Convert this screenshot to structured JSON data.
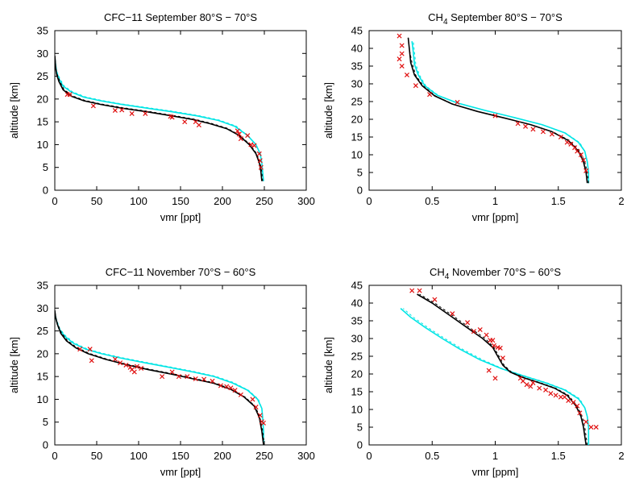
{
  "colors": {
    "model_black": "#000000",
    "model_cyan": "#00e5e5",
    "obs_red": "#e01010",
    "frame": "#000000"
  },
  "chart_data": [
    {
      "type": "line",
      "title": "CFC−11 September 80°S − 70°S",
      "xlabel": "vmr [ppt]",
      "ylabel": "altitude [km]",
      "xlim": [
        0,
        300
      ],
      "ylim": [
        0,
        35
      ],
      "xticks": [
        0,
        50,
        100,
        150,
        200,
        250,
        300
      ],
      "yticks": [
        0,
        5,
        10,
        15,
        20,
        25,
        30,
        35
      ],
      "series": [
        {
          "style": "solid-black",
          "x": [
            247,
            246,
            244,
            240,
            232,
            220,
            205,
            185,
            165,
            140,
            110,
            80,
            55,
            35,
            20,
            10,
            5,
            2,
            1,
            0.5,
            0
          ],
          "y": [
            2,
            4,
            6,
            8,
            10,
            12,
            13.5,
            14.6,
            15.5,
            16.3,
            17.2,
            18,
            18.8,
            19.6,
            20.6,
            22,
            23.8,
            25.5,
            27,
            28.5,
            29.5
          ]
        },
        {
          "style": "dashed-black",
          "x": [
            248,
            247,
            245,
            241,
            233,
            221,
            206,
            186,
            166,
            141,
            111,
            81,
            56,
            36,
            21,
            11,
            6,
            2.5,
            1.2,
            0.5,
            0
          ],
          "y": [
            2,
            4,
            6,
            8,
            10,
            12,
            13.6,
            14.7,
            15.6,
            16.4,
            17.3,
            18.1,
            18.9,
            19.7,
            20.7,
            22.1,
            23.9,
            25.6,
            27,
            28.5,
            29.5
          ]
        },
        {
          "style": "solid-cyan",
          "x": [
            249,
            248,
            247,
            245,
            240,
            230,
            215,
            195,
            170,
            140,
            110,
            80,
            55,
            35,
            20,
            10,
            5,
            2,
            1,
            0
          ],
          "y": [
            2,
            4,
            6,
            8,
            10,
            12,
            14,
            15.3,
            16.3,
            17.2,
            18,
            18.8,
            19.6,
            20.4,
            21.5,
            22.8,
            24.4,
            26,
            27.5,
            29
          ]
        },
        {
          "style": "dashed-cyan",
          "x": [
            249,
            248,
            247,
            245,
            240,
            230,
            216,
            196,
            171,
            141,
            111,
            81,
            56,
            36,
            21,
            11,
            6,
            2.5,
            1,
            0
          ],
          "y": [
            2,
            4,
            6,
            8,
            10,
            12,
            14.1,
            15.4,
            16.4,
            17.3,
            18.1,
            18.9,
            19.7,
            20.5,
            21.6,
            22.9,
            24.5,
            26,
            27.5,
            29
          ]
        },
        {
          "style": "cross-red",
          "x": [
            15,
            18,
            46,
            72,
            80,
            92,
            108,
            138,
            140,
            155,
            168,
            172,
            218,
            220,
            222,
            230,
            234,
            238,
            244,
            245,
            246
          ],
          "y": [
            21,
            21,
            18.5,
            17.5,
            17.6,
            16.8,
            16.8,
            16.2,
            16,
            15,
            15,
            14.3,
            13,
            12.3,
            11.3,
            12,
            10,
            9.8,
            8,
            6.5,
            5
          ]
        }
      ]
    },
    {
      "type": "line",
      "title": "CH",
      "title_sub": "4",
      "title_rest": " September 80°S − 70°S",
      "xlabel": "vmr [ppm]",
      "ylabel": "altitude [km]",
      "xlim": [
        0,
        2
      ],
      "ylim": [
        0,
        45
      ],
      "xticks": [
        0,
        0.5,
        1,
        1.5,
        2
      ],
      "yticks": [
        0,
        5,
        10,
        15,
        20,
        25,
        30,
        35,
        40,
        45
      ],
      "series": [
        {
          "style": "solid-black",
          "x": [
            1.73,
            1.72,
            1.7,
            1.66,
            1.58,
            1.45,
            1.28,
            1.08,
            0.86,
            0.66,
            0.52,
            0.42,
            0.36,
            0.33,
            0.32,
            0.31
          ],
          "y": [
            2,
            5,
            8,
            11,
            14,
            16.5,
            18.5,
            20.3,
            22.2,
            24.3,
            26.6,
            29.5,
            32.5,
            36,
            39.5,
            43
          ]
        },
        {
          "style": "dashed-black",
          "x": [
            1.74,
            1.73,
            1.71,
            1.67,
            1.59,
            1.46,
            1.29,
            1.09,
            0.87,
            0.67,
            0.53,
            0.43,
            0.37,
            0.34,
            0.32,
            0.31
          ],
          "y": [
            2,
            5,
            8,
            11,
            14,
            16.4,
            18.4,
            20.2,
            22.1,
            24.2,
            26.5,
            29.4,
            32.4,
            36,
            39.5,
            43
          ]
        },
        {
          "style": "solid-cyan",
          "x": [
            1.74,
            1.74,
            1.73,
            1.71,
            1.66,
            1.55,
            1.37,
            1.15,
            0.92,
            0.7,
            0.54,
            0.44,
            0.39,
            0.36,
            0.35,
            0.34
          ],
          "y": [
            2,
            5,
            8,
            11,
            13.5,
            16.2,
            18.5,
            20.5,
            22.5,
            24.6,
            26.8,
            29.5,
            32.5,
            35.5,
            39,
            42
          ]
        },
        {
          "style": "dashed-cyan",
          "x": [
            1.74,
            1.74,
            1.73,
            1.71,
            1.67,
            1.56,
            1.38,
            1.16,
            0.93,
            0.71,
            0.55,
            0.45,
            0.4,
            0.37,
            0.36,
            0.35
          ],
          "y": [
            2,
            5,
            8,
            11,
            13.4,
            16.1,
            18.4,
            20.4,
            22.4,
            24.5,
            26.7,
            29.4,
            32.4,
            35.5,
            39,
            42
          ]
        },
        {
          "style": "cross-red",
          "x": [
            0.24,
            0.26,
            0.26,
            0.24,
            0.26,
            0.3,
            0.37,
            0.48,
            0.7,
            1.0,
            1.18,
            1.24,
            1.3,
            1.38,
            1.45,
            1.52,
            1.57,
            1.6,
            1.63,
            1.65,
            1.68,
            1.7,
            1.72
          ],
          "y": [
            43.5,
            40.8,
            38.5,
            37,
            35,
            32.5,
            29.5,
            27,
            24.8,
            21,
            18.8,
            18,
            17.2,
            16.5,
            15.8,
            15,
            13.5,
            13,
            12,
            11,
            10,
            8.5,
            5.5
          ]
        }
      ]
    },
    {
      "type": "line",
      "title": "CFC−11 November 70°S − 60°S",
      "xlabel": "vmr [ppt]",
      "ylabel": "altitude [km]",
      "xlim": [
        0,
        300
      ],
      "ylim": [
        0,
        35
      ],
      "xticks": [
        0,
        50,
        100,
        150,
        200,
        250,
        300
      ],
      "yticks": [
        0,
        5,
        10,
        15,
        20,
        25,
        30,
        35
      ],
      "series": [
        {
          "style": "solid-black",
          "x": [
            249,
            247,
            244,
            238,
            226,
            210,
            190,
            165,
            140,
            112,
            85,
            60,
            40,
            25,
            14,
            7,
            3,
            1,
            0
          ],
          "y": [
            0,
            3,
            6,
            8.5,
            10.5,
            12.2,
            13.5,
            14.5,
            15.5,
            16.5,
            17.6,
            18.8,
            20,
            21.3,
            22.8,
            24.5,
            26.5,
            28,
            29.5
          ]
        },
        {
          "style": "dashed-black",
          "x": [
            250,
            248,
            245,
            239,
            227,
            211,
            191,
            166,
            141,
            113,
            86,
            61,
            41,
            26,
            15,
            8,
            3.5,
            1.2,
            0
          ],
          "y": [
            0,
            3,
            6,
            8.5,
            10.5,
            12.2,
            13.6,
            14.6,
            15.6,
            16.6,
            17.7,
            18.9,
            20.1,
            21.4,
            22.9,
            24.6,
            26.5,
            28,
            29.5
          ]
        },
        {
          "style": "solid-cyan",
          "x": [
            249,
            249,
            248,
            247,
            242,
            230,
            212,
            190,
            165,
            137,
            108,
            80,
            56,
            37,
            22,
            12,
            5,
            1.5,
            0
          ],
          "y": [
            0,
            3,
            6,
            8,
            10,
            12,
            13.6,
            15,
            16,
            17,
            18,
            19,
            20,
            21,
            22.3,
            23.8,
            25.5,
            27.5,
            29
          ]
        },
        {
          "style": "dashed-cyan",
          "x": [
            249,
            249,
            248,
            247,
            243,
            231,
            213,
            191,
            166,
            138,
            109,
            81,
            57,
            38,
            23,
            13,
            6,
            2,
            0
          ],
          "y": [
            0,
            3,
            6,
            8,
            10,
            12,
            13.7,
            15.1,
            16.1,
            17.1,
            18.1,
            19.1,
            20.1,
            21.1,
            22.4,
            23.9,
            25.5,
            27.5,
            29
          ]
        },
        {
          "style": "cross-red",
          "x": [
            30,
            42,
            44,
            72,
            78,
            85,
            90,
            92,
            95,
            98,
            103,
            128,
            140,
            148,
            158,
            168,
            178,
            188,
            198,
            205,
            210,
            215,
            222,
            236,
            240,
            245,
            247,
            249
          ],
          "y": [
            21,
            21,
            18.5,
            18.8,
            18,
            17.5,
            17,
            16.5,
            16,
            17.2,
            16.8,
            15,
            16,
            15,
            15,
            14.5,
            14.4,
            14,
            13,
            12.8,
            12.5,
            12,
            11,
            10,
            8.3,
            6.5,
            5.1,
            4.8
          ]
        }
      ]
    },
    {
      "type": "line",
      "title": "CH",
      "title_sub": "4",
      "title_rest": " November 70°S − 60°S",
      "xlabel": "vmr [ppm]",
      "ylabel": "altitude [km]",
      "xlim": [
        0,
        2
      ],
      "ylim": [
        0,
        45
      ],
      "xticks": [
        0,
        0.5,
        1,
        1.5,
        2
      ],
      "yticks": [
        0,
        5,
        10,
        15,
        20,
        25,
        30,
        35,
        40,
        45
      ],
      "series": [
        {
          "style": "solid-black",
          "x": [
            1.72,
            1.7,
            1.68,
            1.64,
            1.57,
            1.47,
            1.35,
            1.22,
            1.12,
            1.06,
            1.02,
            0.98,
            0.9,
            0.78,
            0.64,
            0.5,
            0.38
          ],
          "y": [
            0,
            5,
            8,
            11,
            14,
            16,
            17.5,
            19,
            20.5,
            22.5,
            25,
            27.5,
            30,
            33,
            36.5,
            40,
            42.5
          ]
        },
        {
          "style": "dashed-black",
          "x": [
            1.73,
            1.71,
            1.69,
            1.65,
            1.58,
            1.48,
            1.36,
            1.23,
            1.13,
            1.07,
            1.03,
            0.99,
            0.92,
            0.8,
            0.66,
            0.52,
            0.4
          ],
          "y": [
            0,
            5,
            8,
            11,
            14,
            16,
            17.5,
            19,
            20.5,
            22.5,
            25,
            27.5,
            30,
            33,
            36.5,
            40,
            42.5
          ]
        },
        {
          "style": "solid-cyan",
          "x": [
            1.74,
            1.74,
            1.73,
            1.71,
            1.66,
            1.55,
            1.4,
            1.22,
            1.05,
            0.88,
            0.72,
            0.58,
            0.45,
            0.33,
            0.25
          ],
          "y": [
            0,
            5,
            8,
            10.5,
            13,
            15.5,
            17.5,
            19.5,
            21.5,
            24,
            27,
            30,
            33,
            36,
            38.5
          ]
        },
        {
          "style": "dashed-cyan",
          "x": [
            1.74,
            1.74,
            1.73,
            1.71,
            1.67,
            1.56,
            1.41,
            1.23,
            1.06,
            0.9,
            0.74,
            0.6,
            0.47,
            0.35,
            0.27
          ],
          "y": [
            0,
            5,
            8,
            10.5,
            13,
            15.5,
            17.5,
            19.5,
            21.5,
            24,
            27,
            30,
            33,
            36,
            38.5
          ]
        },
        {
          "style": "cross-red",
          "x": [
            0.34,
            0.4,
            0.52,
            0.66,
            0.78,
            0.83,
            0.88,
            0.93,
            0.96,
            0.98,
            0.99,
            1.02,
            1.04,
            1.06,
            0.95,
            1.0,
            1.2,
            1.22,
            1.25,
            1.28,
            1.3,
            1.35,
            1.4,
            1.44,
            1.48,
            1.52,
            1.55,
            1.58,
            1.62,
            1.65,
            1.67,
            1.72,
            1.76,
            1.8
          ],
          "y": [
            43.5,
            43.5,
            41,
            37,
            34.5,
            32,
            32.5,
            31,
            29.5,
            29.5,
            28,
            27.5,
            27.3,
            24.5,
            21,
            18.8,
            18.8,
            18,
            17,
            16.5,
            17.5,
            16,
            15.5,
            14.5,
            14,
            13.5,
            13.5,
            12.5,
            12,
            11,
            9,
            6.5,
            5,
            5
          ]
        }
      ]
    }
  ]
}
